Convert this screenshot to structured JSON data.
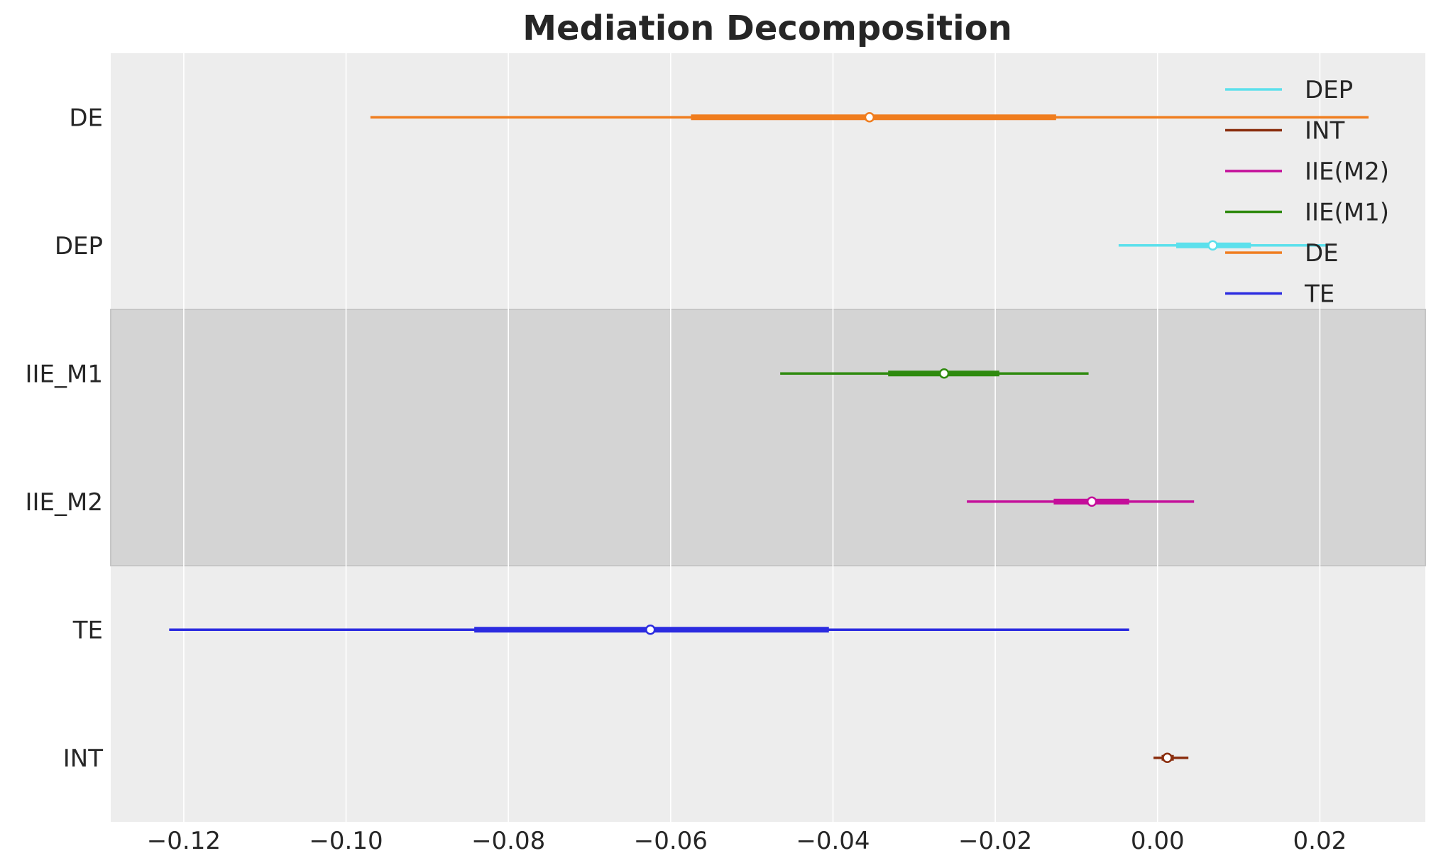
{
  "chart_data": {
    "type": "forest",
    "title": "Mediation Decomposition",
    "xlim": [
      -0.129,
      0.033
    ],
    "xticks": [
      {
        "value": -0.12,
        "label": "−0.12"
      },
      {
        "value": -0.1,
        "label": "−0.10"
      },
      {
        "value": -0.08,
        "label": "−0.08"
      },
      {
        "value": -0.06,
        "label": "−0.06"
      },
      {
        "value": -0.04,
        "label": "−0.04"
      },
      {
        "value": -0.02,
        "label": "−0.02"
      },
      {
        "value": 0.0,
        "label": "0.00"
      },
      {
        "value": 0.02,
        "label": "0.02"
      }
    ],
    "grid": true,
    "highlight_rows": [
      "IIE_M1",
      "IIE_M2"
    ],
    "series": [
      {
        "label": "DE",
        "color": "#f07d1e",
        "median": -0.0355,
        "hdi_inner": [
          -0.0575,
          -0.0125
        ],
        "hdi_outer": [
          -0.097,
          0.026
        ]
      },
      {
        "label": "DEP",
        "color": "#5ce0ec",
        "median": 0.0068,
        "hdi_inner": [
          0.0023,
          0.0115
        ],
        "hdi_outer": [
          -0.0048,
          0.021
        ]
      },
      {
        "label": "IIE_M1",
        "color": "#2e8a0e",
        "median": -0.0263,
        "hdi_inner": [
          -0.0332,
          -0.0195
        ],
        "hdi_outer": [
          -0.0465,
          -0.0085
        ]
      },
      {
        "label": "IIE_M2",
        "color": "#c40e9a",
        "median": -0.0081,
        "hdi_inner": [
          -0.0128,
          -0.0035
        ],
        "hdi_outer": [
          -0.0235,
          0.0045
        ]
      },
      {
        "label": "TE",
        "color": "#2b2be0",
        "median": -0.0625,
        "hdi_inner": [
          -0.0842,
          -0.0405
        ],
        "hdi_outer": [
          -0.1218,
          -0.0035
        ]
      },
      {
        "label": "INT",
        "color": "#8a2e0e",
        "median": 0.0012,
        "hdi_inner": [
          0.0005,
          0.002
        ],
        "hdi_outer": [
          -0.0005,
          0.0038
        ]
      }
    ],
    "legend": {
      "placement": "top-right",
      "entries": [
        {
          "label": "DEP",
          "color": "#5ce0ec"
        },
        {
          "label": "INT",
          "color": "#8a2e0e"
        },
        {
          "label": "IIE(M2)",
          "color": "#c40e9a"
        },
        {
          "label": "IIE(M1)",
          "color": "#2e8a0e"
        },
        {
          "label": "DE",
          "color": "#f07d1e"
        },
        {
          "label": "TE",
          "color": "#2b2be0"
        }
      ]
    }
  }
}
